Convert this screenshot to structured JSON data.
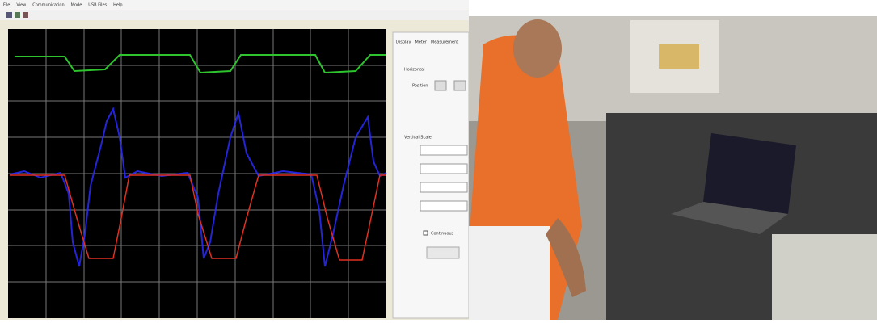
{
  "menu": [
    "File",
    "View",
    "Communication",
    "Mode",
    "USB Files",
    "Help"
  ],
  "tabs": [
    "Display",
    "Meter",
    "Measurement"
  ],
  "panel": {
    "horizontal": "Horizontal",
    "position": "Position",
    "vertical_scale": "Vertical Scale",
    "continuous": "Continuous"
  }
}
